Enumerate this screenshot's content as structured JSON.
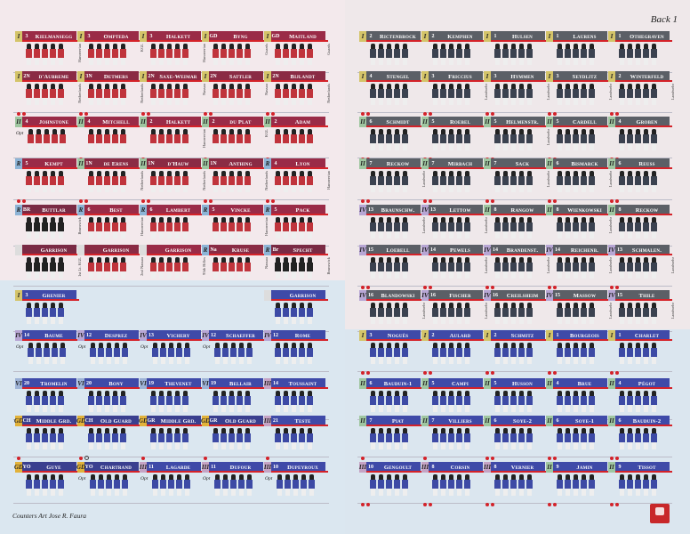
{
  "sheet": {
    "title": "Back 1",
    "credits": "Counters Art Jose R. Faura"
  },
  "palette": {
    "british": "#9a2b47",
    "brunswick": "#7a2a44",
    "kgl": "#9a2b47",
    "nassau": "#8a2b44",
    "guard_blue": "#3a3f8f",
    "french": "#3f4aa8",
    "prussian": "#5b5f66",
    "corps_I": "#d4c469",
    "corps_II": "#9fc6a0",
    "corps_R": "#8db4d6",
    "corps_IV": "#b7a6d4",
    "corps_VI": "#9eb3d6",
    "corps_GD": "#e2b23a",
    "corps_III": "#c5a3c4",
    "red": "#d42229"
  },
  "left_counters": [
    {
      "corps": "I",
      "div": "3",
      "name": "Kielmansegg",
      "uniform": "british",
      "side": "Hanoverian",
      "dots": 2
    },
    {
      "corps": "I",
      "div": "3",
      "name": "Ompteda",
      "uniform": "kgl",
      "side": "KGL",
      "dots": 1
    },
    {
      "corps": "I",
      "div": "3",
      "name": "Halkett",
      "uniform": "british",
      "side": "Hanoverian",
      "dots": 1
    },
    {
      "corps": "I",
      "div": "GD",
      "name": "Byng",
      "uniform": "british",
      "side": "Guards",
      "dots": 1,
      "empty": true
    },
    {
      "corps": "I",
      "div": "GD",
      "name": "Maitland",
      "uniform": "british",
      "side": "Guards",
      "dots": 1,
      "empty": true
    },
    {
      "corps": "I",
      "div": "2N",
      "name": "d'Aubreme",
      "uniform": "nassau",
      "side": "Netherlands",
      "dots": 2
    },
    {
      "corps": "I",
      "div": "3N",
      "name": "Detmers",
      "uniform": "nassau",
      "side": "Netherlands",
      "dots": 2
    },
    {
      "corps": "I",
      "div": "2N",
      "name": "Saxe-Weimar",
      "uniform": "nassau",
      "side": "Nassau",
      "dots": 2
    },
    {
      "corps": "I",
      "div": "2N",
      "name": "Sattler",
      "uniform": "nassau",
      "side": "Nassau",
      "dots": 2
    },
    {
      "corps": "I",
      "div": "2N",
      "name": "Bijlandt",
      "uniform": "nassau",
      "side": "Netherlands",
      "dots": 2
    },
    {
      "corps": "II",
      "div": "4",
      "name": "Johnstone",
      "uniform": "british",
      "side": "",
      "dots": 0,
      "opt": true
    },
    {
      "corps": "II",
      "div": "4",
      "name": "Mitchell",
      "uniform": "british",
      "side": "",
      "dots": 1
    },
    {
      "corps": "II",
      "div": "2",
      "name": "Halkett",
      "uniform": "british",
      "side": "Hanoverian",
      "dots": 1
    },
    {
      "corps": "II",
      "div": "2",
      "name": "du Plat",
      "uniform": "kgl",
      "side": "KGL",
      "dots": 1
    },
    {
      "corps": "II",
      "div": "2",
      "name": "Adam",
      "uniform": "british",
      "side": "",
      "dots": 1
    },
    {
      "corps": "R",
      "div": "5",
      "name": "Kempt",
      "uniform": "british",
      "side": "",
      "dots": 2
    },
    {
      "corps": "II",
      "div": "1N",
      "name": "de Erens",
      "uniform": "nassau",
      "side": "Netherlands",
      "dots": 2
    },
    {
      "corps": "II",
      "div": "1N",
      "name": "d'Hauw",
      "uniform": "nassau",
      "side": "Netherlands",
      "dots": 2
    },
    {
      "corps": "II",
      "div": "1N",
      "name": "Anthing",
      "uniform": "nassau",
      "side": "Netherlands",
      "dots": 2
    },
    {
      "corps": "R",
      "div": "4",
      "name": "Lyon",
      "uniform": "british",
      "side": "Hanoverian",
      "dots": 2
    },
    {
      "corps": "R",
      "div": "BR",
      "name": "Buttlar",
      "uniform": "brunswick",
      "side": "Brunswick",
      "dots": 2
    },
    {
      "corps": "R",
      "div": "6",
      "name": "Best",
      "uniform": "british",
      "side": "Hanoverian",
      "dots": 2
    },
    {
      "corps": "R",
      "div": "6",
      "name": "Lambert",
      "uniform": "british",
      "side": "",
      "dots": 2
    },
    {
      "corps": "R",
      "div": "5",
      "name": "Vincke",
      "uniform": "british",
      "side": "Hanoverian",
      "dots": 2
    },
    {
      "corps": "R",
      "div": "5",
      "name": "Pack",
      "uniform": "british",
      "side": "",
      "dots": 2
    },
    {
      "corps": "",
      "div": "",
      "name": "Garrison",
      "uniform": "brunswick",
      "side": "1st Lt. KGL",
      "dots": 0
    },
    {
      "corps": "",
      "div": "",
      "name": "Garrison",
      "uniform": "nassau",
      "side": "2nd Nassau",
      "dots": 0
    },
    {
      "corps": "",
      "div": "",
      "name": "Garrison",
      "uniform": "british",
      "side": "95th Rifles",
      "dots": 0
    },
    {
      "corps": "R",
      "div": "Na",
      "name": "Kruse",
      "uniform": "nassau",
      "side": "Nassau",
      "dots": 0
    },
    {
      "corps": "R",
      "div": "Br",
      "name": "Specht",
      "uniform": "brunswick",
      "side": "Brunswick",
      "dots": 0
    },
    {
      "corps": "I",
      "div": "3",
      "name": "Grenier",
      "uniform": "french",
      "side": "",
      "dots": 1
    },
    {
      "corps": "",
      "div": "",
      "name": "Garrison",
      "uniform": "french",
      "side": "",
      "dots": 0
    },
    {
      "corps": "IV",
      "div": "14",
      "name": "Baume",
      "uniform": "french",
      "side": "",
      "dots": 0,
      "opt": true
    },
    {
      "corps": "IV",
      "div": "12",
      "name": "Desprez",
      "uniform": "french",
      "side": "",
      "dots": 0,
      "opt": true
    },
    {
      "corps": "IV",
      "div": "13",
      "name": "Vichery",
      "uniform": "french",
      "side": "",
      "dots": 0,
      "opt": true
    },
    {
      "corps": "IV",
      "div": "12",
      "name": "Schaeffer",
      "uniform": "french",
      "side": "",
      "dots": 0,
      "opt": true
    },
    {
      "corps": "IV",
      "div": "12",
      "name": "Rome",
      "uniform": "french",
      "side": "",
      "dots": 0
    },
    {
      "corps": "VI",
      "div": "20",
      "name": "Tromelin",
      "uniform": "french",
      "side": "",
      "dots": 1
    },
    {
      "corps": "VI",
      "div": "20",
      "name": "Bony",
      "uniform": "french",
      "side": "",
      "dots": 1
    },
    {
      "corps": "VI",
      "div": "19",
      "name": "Thevenet",
      "uniform": "french",
      "side": "",
      "dots": 1
    },
    {
      "corps": "VI",
      "div": "19",
      "name": "Bellair",
      "uniform": "french",
      "side": "",
      "dots": 1
    },
    {
      "corps": "III",
      "div": "14",
      "name": "Toussaint",
      "uniform": "french",
      "side": "",
      "dots": 1
    },
    {
      "corps": "GD",
      "div": "CH",
      "name": "Middle Grd.",
      "uniform": "guard_blue",
      "side": "",
      "dots": 1
    },
    {
      "corps": "GD",
      "div": "CH",
      "name": "Old Guard",
      "uniform": "guard_blue",
      "side": "",
      "dots": 1,
      "empty": true
    },
    {
      "corps": "GD",
      "div": "GR",
      "name": "Middle Grd.",
      "uniform": "guard_blue",
      "side": "",
      "dots": 1
    },
    {
      "corps": "GD",
      "div": "GR",
      "name": "Old Guard",
      "uniform": "guard_blue",
      "side": "",
      "dots": 1
    },
    {
      "corps": "III",
      "div": "21",
      "name": "Teste",
      "uniform": "french",
      "side": "",
      "dots": 1
    },
    {
      "corps": "GD",
      "div": "YO",
      "name": "Guye",
      "uniform": "guard_blue",
      "side": "",
      "dots": 0
    },
    {
      "corps": "GD",
      "div": "YO",
      "name": "Chartrand",
      "uniform": "guard_blue",
      "side": "",
      "dots": 0,
      "opt": true
    },
    {
      "corps": "III",
      "div": "11",
      "name": "Lagarde",
      "uniform": "french",
      "side": "",
      "dots": 0,
      "opt": true
    },
    {
      "corps": "III",
      "div": "11",
      "name": "Dufour",
      "uniform": "french",
      "side": "",
      "dots": 0,
      "opt": true
    },
    {
      "corps": "III",
      "div": "10",
      "name": "Dupeyroux",
      "uniform": "french",
      "side": "",
      "dots": 0,
      "opt": true
    }
  ],
  "right_counters": [
    {
      "corps": "I",
      "div": "2",
      "name": "Rictenbrock",
      "uniform": "prussian",
      "side": "",
      "dots": 2
    },
    {
      "corps": "I",
      "div": "2",
      "name": "Kemphen",
      "uniform": "prussian",
      "side": "",
      "dots": 2
    },
    {
      "corps": "I",
      "div": "1",
      "name": "Hulsen",
      "uniform": "prussian",
      "side": "",
      "dots": 2
    },
    {
      "corps": "I",
      "div": "1",
      "name": "Laurens",
      "uniform": "prussian",
      "side": "",
      "dots": 2
    },
    {
      "corps": "I",
      "div": "1",
      "name": "Othegraven",
      "uniform": "prussian",
      "side": "",
      "dots": 2
    },
    {
      "corps": "I",
      "div": "4",
      "name": "Stengel",
      "uniform": "prussian",
      "side": "",
      "dots": 2
    },
    {
      "corps": "I",
      "div": "3",
      "name": "Friccius",
      "uniform": "prussian",
      "side": "Landwehr",
      "dots": 2
    },
    {
      "corps": "I",
      "div": "3",
      "name": "Hymmen",
      "uniform": "prussian",
      "side": "Landwehr",
      "dots": 2
    },
    {
      "corps": "I",
      "div": "3",
      "name": "Seydlitz",
      "uniform": "prussian",
      "side": "Landwehr",
      "dots": 2
    },
    {
      "corps": "I",
      "div": "2",
      "name": "Winterfeld",
      "uniform": "prussian",
      "side": "Landwehr",
      "dots": 2
    },
    {
      "corps": "II",
      "div": "6",
      "name": "Schmidt",
      "uniform": "prussian",
      "side": "",
      "dots": 2
    },
    {
      "corps": "II",
      "div": "5",
      "name": "Roebel",
      "uniform": "prussian",
      "side": "",
      "dots": 2
    },
    {
      "corps": "II",
      "div": "5",
      "name": "Helmenstr.",
      "uniform": "prussian",
      "side": "Landwehr",
      "dots": 2
    },
    {
      "corps": "II",
      "div": "5",
      "name": "Cardell",
      "uniform": "prussian",
      "side": "",
      "dots": 2
    },
    {
      "corps": "II",
      "div": "4",
      "name": "Groben",
      "uniform": "prussian",
      "side": "",
      "dots": 2
    },
    {
      "corps": "II",
      "div": "7",
      "name": "Reckow",
      "uniform": "prussian",
      "side": "Landwehr",
      "dots": 2
    },
    {
      "corps": "II",
      "div": "7",
      "name": "Mirbach",
      "uniform": "prussian",
      "side": "",
      "dots": 2
    },
    {
      "corps": "II",
      "div": "7",
      "name": "Sack",
      "uniform": "prussian",
      "side": "Landwehr",
      "dots": 2
    },
    {
      "corps": "II",
      "div": "6",
      "name": "Bismarck",
      "uniform": "prussian",
      "side": "Landwehr",
      "dots": 2
    },
    {
      "corps": "II",
      "div": "6",
      "name": "Reuss",
      "uniform": "prussian",
      "side": "",
      "dots": 2
    },
    {
      "corps": "IV",
      "div": "13",
      "name": "Braunschw.",
      "uniform": "prussian",
      "side": "Landwehr",
      "dots": 2
    },
    {
      "corps": "IV",
      "div": "13",
      "name": "Lettow",
      "uniform": "prussian",
      "side": "Landwehr",
      "dots": 2
    },
    {
      "corps": "II",
      "div": "8",
      "name": "Rangow",
      "uniform": "prussian",
      "side": "",
      "dots": 2
    },
    {
      "corps": "II",
      "div": "8",
      "name": "Wienkowski",
      "uniform": "prussian",
      "side": "Landwehr",
      "dots": 2
    },
    {
      "corps": "II",
      "div": "8",
      "name": "Reckow",
      "uniform": "prussian",
      "side": "",
      "dots": 2
    },
    {
      "corps": "IV",
      "div": "15",
      "name": "Loebell",
      "uniform": "prussian",
      "side": "",
      "dots": 2
    },
    {
      "corps": "IV",
      "div": "14",
      "name": "Pewels",
      "uniform": "prussian",
      "side": "Landwehr",
      "dots": 2
    },
    {
      "corps": "IV",
      "div": "14",
      "name": "Brandenst.",
      "uniform": "prussian",
      "side": "Landwehr",
      "dots": 2
    },
    {
      "corps": "IV",
      "div": "14",
      "name": "Reichenb.",
      "uniform": "prussian",
      "side": "Landwehr",
      "dots": 2
    },
    {
      "corps": "IV",
      "div": "13",
      "name": "Schmalen.",
      "uniform": "prussian",
      "side": "Landwehr",
      "dots": 2
    },
    {
      "corps": "IV",
      "div": "16",
      "name": "Blandowski",
      "uniform": "prussian",
      "side": "Landwehr",
      "dots": 2
    },
    {
      "corps": "IV",
      "div": "16",
      "name": "Fischer",
      "uniform": "prussian",
      "side": "Landwehr",
      "dots": 2
    },
    {
      "corps": "IV",
      "div": "16",
      "name": "Creilsheim",
      "uniform": "prussian",
      "side": "",
      "dots": 2
    },
    {
      "corps": "IV",
      "div": "15",
      "name": "Massow",
      "uniform": "prussian",
      "side": "Landwehr",
      "dots": 2
    },
    {
      "corps": "IV",
      "div": "15",
      "name": "Thile",
      "uniform": "prussian",
      "side": "Landwehr",
      "dots": 2
    },
    {
      "corps": "I",
      "div": "3",
      "name": "Noguès",
      "uniform": "french",
      "side": "",
      "dots": 2
    },
    {
      "corps": "I",
      "div": "2",
      "name": "Aulard",
      "uniform": "french",
      "side": "",
      "dots": 2
    },
    {
      "corps": "I",
      "div": "2",
      "name": "Schmitz",
      "uniform": "french",
      "side": "",
      "dots": 2
    },
    {
      "corps": "I",
      "div": "1",
      "name": "Bourgeois",
      "uniform": "french",
      "side": "",
      "dots": 2
    },
    {
      "corps": "I",
      "div": "1",
      "name": "Charlet",
      "uniform": "french",
      "side": "",
      "dots": 2
    },
    {
      "corps": "II",
      "div": "6",
      "name": "Bauduin-1",
      "uniform": "french",
      "side": "",
      "dots": 2
    },
    {
      "corps": "II",
      "div": "5",
      "name": "Campi",
      "uniform": "french",
      "side": "",
      "dots": 2
    },
    {
      "corps": "II",
      "div": "5",
      "name": "Husson",
      "uniform": "french",
      "side": "",
      "dots": 2
    },
    {
      "corps": "II",
      "div": "4",
      "name": "Brue",
      "uniform": "french",
      "side": "",
      "dots": 2
    },
    {
      "corps": "II",
      "div": "4",
      "name": "Pégot",
      "uniform": "french",
      "side": "",
      "dots": 2
    },
    {
      "corps": "II",
      "div": "7",
      "name": "Piat",
      "uniform": "french",
      "side": "",
      "dots": 1
    },
    {
      "corps": "II",
      "div": "7",
      "name": "Villiers",
      "uniform": "french",
      "side": "",
      "dots": 1
    },
    {
      "corps": "II",
      "div": "6",
      "name": "Soye-2",
      "uniform": "french",
      "side": "",
      "dots": 2
    },
    {
      "corps": "II",
      "div": "6",
      "name": "Soye-1",
      "uniform": "french",
      "side": "",
      "dots": 2
    },
    {
      "corps": "II",
      "div": "6",
      "name": "Bauduin-2",
      "uniform": "french",
      "side": "",
      "dots": 2
    },
    {
      "corps": "III",
      "div": "10",
      "name": "Gengoult",
      "uniform": "french",
      "side": "",
      "dots": 2
    },
    {
      "corps": "III",
      "div": "8",
      "name": "Corsin",
      "uniform": "french",
      "side": "",
      "dots": 2
    },
    {
      "corps": "III",
      "div": "8",
      "name": "Vernier",
      "uniform": "french",
      "side": "",
      "dots": 2
    },
    {
      "corps": "II",
      "div": "9",
      "name": "Jamin",
      "uniform": "french",
      "side": "",
      "dots": 2
    },
    {
      "corps": "II",
      "div": "9",
      "name": "Tissot",
      "uniform": "french",
      "side": "",
      "dots": 2
    }
  ]
}
